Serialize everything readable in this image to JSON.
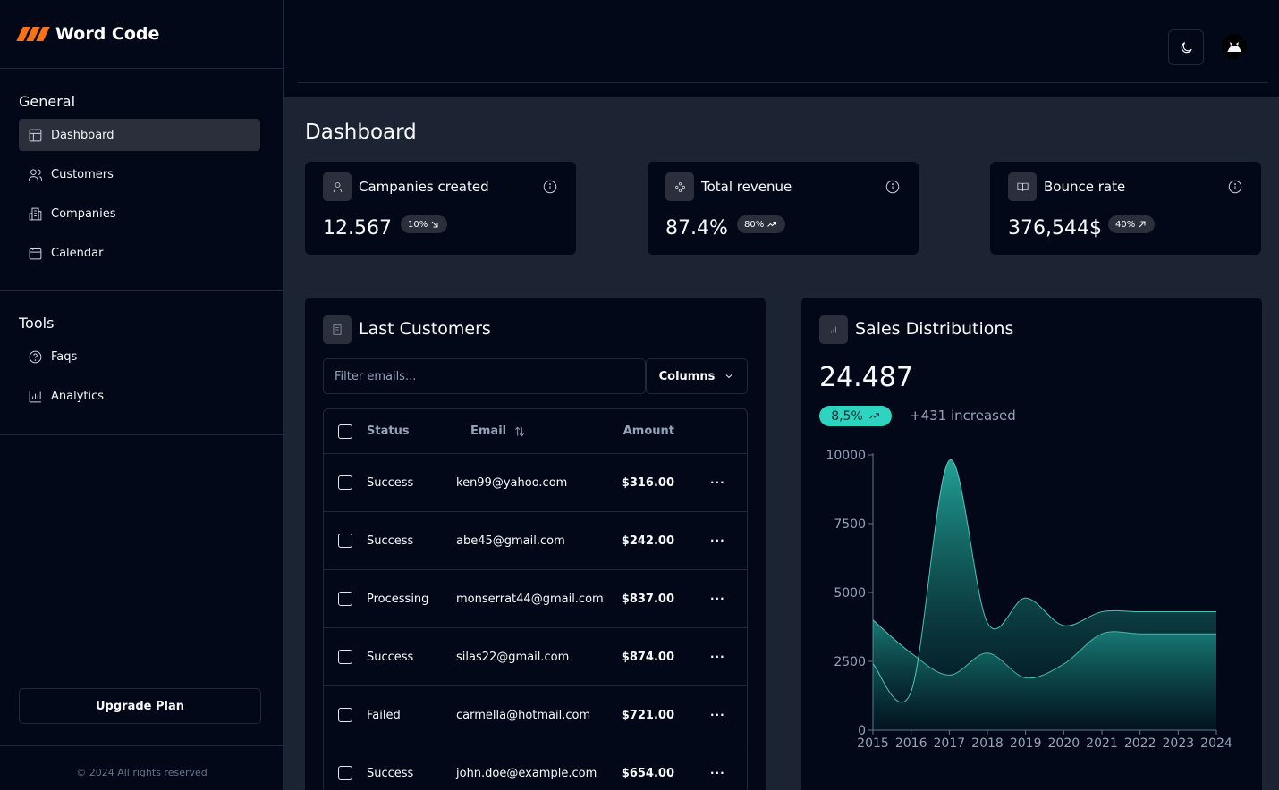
{
  "brand": {
    "name": "Word Code"
  },
  "sidebar": {
    "general_title": "General",
    "general_items": [
      {
        "label": "Dashboard",
        "icon": "layout-icon",
        "active": true
      },
      {
        "label": "Customers",
        "icon": "users-icon"
      },
      {
        "label": "Companies",
        "icon": "building-icon"
      },
      {
        "label": "Calendar",
        "icon": "calendar-icon"
      }
    ],
    "tools_title": "Tools",
    "tools_items": [
      {
        "label": "Faqs",
        "icon": "help-circle-icon"
      },
      {
        "label": "Analytics",
        "icon": "bar-chart-icon"
      }
    ],
    "upgrade_label": "Upgrade Plan",
    "copyright": "© 2024 All rights reserved"
  },
  "header": {
    "theme_icon": "moon-icon",
    "avatar_icon": "avatar"
  },
  "main": {
    "title": "Dashboard",
    "stats": [
      {
        "label": "Campanies created",
        "value": "12.567",
        "badge": "10%",
        "trend": "down",
        "icon": "user-icon"
      },
      {
        "label": "Total revenue",
        "value": "87.4%",
        "badge": "80%",
        "trend": "up-trend",
        "icon": "sparkle-icon"
      },
      {
        "label": "Bounce rate",
        "value": "376,544$",
        "badge": "40%",
        "trend": "up",
        "icon": "book-icon"
      }
    ],
    "customers": {
      "title": "Last Customers",
      "filter_placeholder": "Filter emails...",
      "columns_label": "Columns",
      "headers": {
        "status": "Status",
        "email": "Email",
        "amount": "Amount"
      },
      "rows": [
        {
          "status": "Success",
          "email": "ken99@yahoo.com",
          "amount": "$316.00"
        },
        {
          "status": "Success",
          "email": "abe45@gmail.com",
          "amount": "$242.00"
        },
        {
          "status": "Processing",
          "email": "monserrat44@gmail.com",
          "amount": "$837.00"
        },
        {
          "status": "Success",
          "email": "silas22@gmail.com",
          "amount": "$874.00"
        },
        {
          "status": "Failed",
          "email": "carmella@hotmail.com",
          "amount": "$721.00"
        },
        {
          "status": "Success",
          "email": "john.doe@example.com",
          "amount": "$654.00"
        }
      ],
      "more_label": "···"
    },
    "sales": {
      "title": "Sales Distributions",
      "value": "24.487",
      "badge": "8,5%",
      "increase_text": "+431 increased"
    }
  },
  "colors": {
    "accent": "#2dd4bf",
    "background": "#020817",
    "panel_bg": "#1c2433"
  },
  "chart_data": {
    "type": "area",
    "x": [
      "2015",
      "2016",
      "2017",
      "2018",
      "2019",
      "2020",
      "2021",
      "2022",
      "2023",
      "2024"
    ],
    "series": [
      {
        "values": [
          4000,
          2800,
          2000,
          2800,
          1900,
          2400,
          3500,
          3500,
          3500,
          3500
        ]
      },
      {
        "values": [
          2400,
          1400,
          9800,
          3900,
          4800,
          3800,
          4300,
          4300,
          4300,
          4300
        ]
      }
    ],
    "ylim": [
      0,
      10000
    ],
    "yticks": [
      0,
      2500,
      5000,
      7500,
      10000
    ]
  }
}
